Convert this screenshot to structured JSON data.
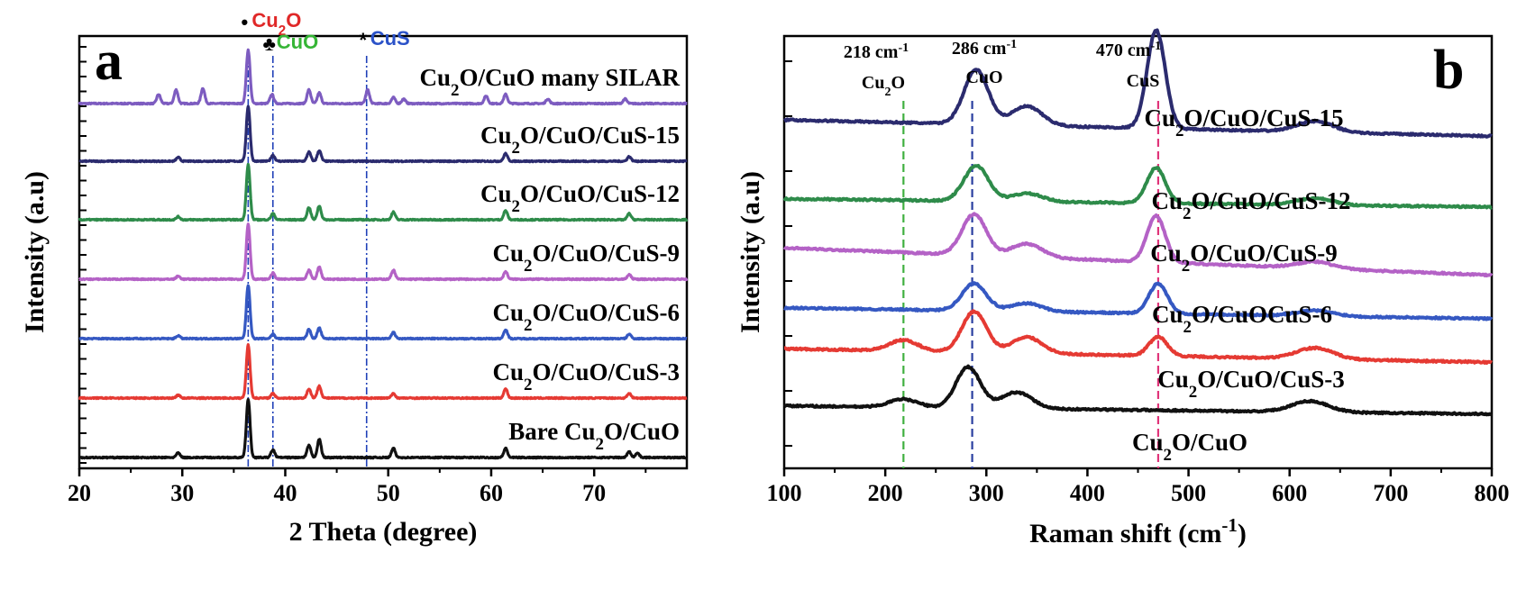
{
  "chart_data": [
    {
      "type": "line",
      "panel_label": "a",
      "xlabel": "2 Theta (degree)",
      "ylabel": "Intensity (a.u)",
      "xlim": [
        20,
        79
      ],
      "xticks": [
        20,
        30,
        40,
        50,
        60,
        70
      ],
      "y_ticks_labeled": false,
      "grid": false,
      "legend": "none",
      "phase_markers": [
        {
          "symbol": "•",
          "phase_pre": "Cu",
          "phase_sub": "2",
          "phase_post": "O",
          "x": 36.4,
          "color": "#e02828",
          "line_color": "#2040b8"
        },
        {
          "symbol": "♣",
          "phase_pre": "CuO",
          "phase_sub": "",
          "phase_post": "",
          "x": 38.8,
          "color": "#36b536",
          "line_color": "#2040b8"
        },
        {
          "symbol": "*",
          "phase_pre": "CuS",
          "phase_sub": "",
          "phase_post": "",
          "x": 47.9,
          "color": "#2b52c8",
          "line_color": "#2040b8"
        }
      ],
      "series": [
        {
          "label_pre": "Cu",
          "label_sub": "2",
          "label_post": "O/CuO many SILAR",
          "color": "#7d5cc0",
          "baseline": 6,
          "peaks": [
            [
              27.7,
              0.6
            ],
            [
              29.4,
              0.9
            ],
            [
              32.0,
              1.0
            ],
            [
              36.4,
              3.5
            ],
            [
              38.7,
              0.6
            ],
            [
              42.3,
              0.9
            ],
            [
              43.3,
              0.7
            ],
            [
              48.0,
              0.9
            ],
            [
              50.5,
              0.4
            ],
            [
              51.5,
              0.3
            ],
            [
              59.5,
              0.5
            ],
            [
              61.4,
              0.6
            ],
            [
              65.5,
              0.3
            ],
            [
              73.0,
              0.3
            ]
          ]
        },
        {
          "label_pre": "Cu",
          "label_sub": "2",
          "label_post": "O/CuO/CuS-15",
          "color": "#2b2b6e",
          "baseline": 5,
          "peaks": [
            [
              29.6,
              0.25
            ],
            [
              36.4,
              3.6
            ],
            [
              38.8,
              0.4
            ],
            [
              42.3,
              0.6
            ],
            [
              43.3,
              0.7
            ],
            [
              61.4,
              0.5
            ],
            [
              73.4,
              0.3
            ]
          ]
        },
        {
          "label_pre": "Cu",
          "label_sub": "2",
          "label_post": "O/CuO/CuS-12",
          "color": "#2e8b4a",
          "baseline": 4,
          "peaks": [
            [
              29.6,
              0.2
            ],
            [
              36.4,
              3.6
            ],
            [
              38.8,
              0.4
            ],
            [
              42.3,
              0.8
            ],
            [
              43.3,
              0.9
            ],
            [
              50.5,
              0.5
            ],
            [
              61.4,
              0.6
            ],
            [
              73.4,
              0.4
            ]
          ]
        },
        {
          "label_pre": "Cu",
          "label_sub": "2",
          "label_post": "O/CuO/CuS-9",
          "color": "#b462c6",
          "baseline": 3,
          "peaks": [
            [
              29.6,
              0.2
            ],
            [
              36.4,
              3.6
            ],
            [
              38.8,
              0.4
            ],
            [
              42.3,
              0.6
            ],
            [
              43.3,
              0.8
            ],
            [
              50.5,
              0.6
            ],
            [
              61.4,
              0.5
            ],
            [
              73.4,
              0.3
            ]
          ]
        },
        {
          "label_pre": "Cu",
          "label_sub": "2",
          "label_post": "O/CuO/CuS-6",
          "color": "#3558c2",
          "baseline": 2,
          "peaks": [
            [
              29.6,
              0.2
            ],
            [
              36.4,
              3.5
            ],
            [
              38.8,
              0.3
            ],
            [
              42.3,
              0.6
            ],
            [
              43.3,
              0.7
            ],
            [
              50.5,
              0.4
            ],
            [
              61.4,
              0.6
            ],
            [
              73.4,
              0.3
            ]
          ]
        },
        {
          "label_pre": "Cu",
          "label_sub": "2",
          "label_post": "O/CuO/CuS-3",
          "color": "#e53a33",
          "baseline": 1,
          "peaks": [
            [
              29.6,
              0.2
            ],
            [
              36.4,
              3.5
            ],
            [
              38.8,
              0.3
            ],
            [
              42.3,
              0.6
            ],
            [
              43.3,
              0.8
            ],
            [
              50.5,
              0.3
            ],
            [
              61.4,
              0.6
            ],
            [
              73.4,
              0.3
            ]
          ]
        },
        {
          "label_pre": "Bare Cu",
          "label_sub": "2",
          "label_post": "O/CuO",
          "color": "#111111",
          "baseline": 0,
          "peaks": [
            [
              29.6,
              0.3
            ],
            [
              36.4,
              3.8
            ],
            [
              38.8,
              0.5
            ],
            [
              42.3,
              0.8
            ],
            [
              43.3,
              1.2
            ],
            [
              50.5,
              0.6
            ],
            [
              61.4,
              0.6
            ],
            [
              73.4,
              0.4
            ],
            [
              74.2,
              0.3
            ]
          ]
        }
      ]
    },
    {
      "type": "line",
      "panel_label": "b",
      "xlabel_pre": "Raman shift (cm",
      "xlabel_sup": "-1",
      "xlabel_post": ")",
      "ylabel": "Intensity (a.u)",
      "xlim": [
        100,
        800
      ],
      "xticks": [
        100,
        200,
        300,
        400,
        500,
        600,
        700,
        800
      ],
      "y_ticks_labeled": false,
      "grid": false,
      "legend": "none",
      "peak_lines": [
        {
          "x": 218,
          "value_text": "218 cm",
          "unit_sup": "-1",
          "phase_pre": "Cu",
          "phase_sub": "2",
          "phase_post": "O",
          "color": "#40b040"
        },
        {
          "x": 286,
          "value_text": "286 cm",
          "unit_sup": "-1",
          "phase_pre": "CuO",
          "phase_sub": "",
          "phase_post": "",
          "color": "#2a3fa0"
        },
        {
          "x": 470,
          "value_text": "470 cm",
          "unit_sup": "-1",
          "phase_pre": "CuS",
          "phase_sub": "",
          "phase_post": "",
          "color": "#e0357a"
        }
      ],
      "series": [
        {
          "label_pre": "Cu",
          "label_sub": "2",
          "label_post": "O/CuO/CuS-15",
          "color": "#2b2b6e",
          "start": 5.9,
          "end": 5.6,
          "peaks": [
            [
              290,
              1.0,
              12
            ],
            [
              340,
              0.35,
              15
            ],
            [
              468,
              1.8,
              9
            ],
            [
              625,
              0.2,
              18
            ]
          ]
        },
        {
          "label_pre": "Cu",
          "label_sub": "2",
          "label_post": "O/CuO/CuS-12",
          "color": "#2e8b4a",
          "start": 4.45,
          "end": 4.3,
          "peaks": [
            [
              290,
              0.65,
              12
            ],
            [
              340,
              0.15,
              15
            ],
            [
              468,
              0.65,
              9
            ],
            [
              625,
              0.12,
              18
            ]
          ]
        },
        {
          "label_pre": "Cu",
          "label_sub": "2",
          "label_post": "O/CuO/CuS-9",
          "color": "#b462c6",
          "start": 3.55,
          "end": 3.05,
          "peaks": [
            [
              288,
              0.75,
              12
            ],
            [
              340,
              0.25,
              15
            ],
            [
              468,
              0.85,
              9
            ],
            [
              625,
              0.12,
              18
            ]
          ]
        },
        {
          "label_pre": "Cu",
          "label_sub": "2",
          "label_post": "O/CuOCuS-6",
          "color": "#3558c2",
          "start": 2.45,
          "end": 2.25,
          "peaks": [
            [
              288,
              0.5,
              12
            ],
            [
              340,
              0.15,
              15
            ],
            [
              470,
              0.55,
              9
            ],
            [
              625,
              0.1,
              18
            ]
          ]
        },
        {
          "label_pre": "Cu",
          "label_sub": "2",
          "label_post": "O/CuO/CuS-3",
          "color": "#e53a33",
          "start": 1.7,
          "end": 1.45,
          "peaks": [
            [
              218,
              0.2,
              14
            ],
            [
              288,
              0.75,
              12
            ],
            [
              340,
              0.3,
              15
            ],
            [
              470,
              0.35,
              9
            ],
            [
              625,
              0.2,
              18
            ]
          ]
        },
        {
          "label_pre": "Cu",
          "label_sub": "2",
          "label_post": "O/CuO",
          "color": "#111111",
          "start": 0.65,
          "end": 0.5,
          "peaks": [
            [
              218,
              0.15,
              14
            ],
            [
              282,
              0.75,
              12
            ],
            [
              330,
              0.3,
              15
            ],
            [
              620,
              0.2,
              18
            ]
          ]
        }
      ]
    }
  ]
}
